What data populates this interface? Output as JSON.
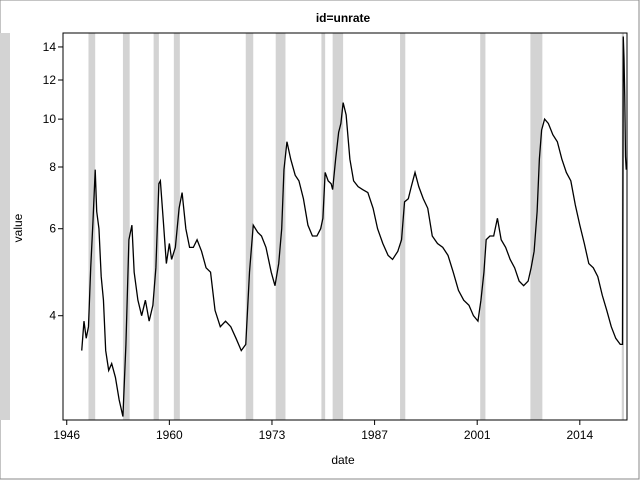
{
  "chart_data": {
    "type": "line",
    "title": "id=unrate",
    "x_label": "date",
    "y_label": "value",
    "ylog": true,
    "xlim": [
      1945.5,
      2020.8
    ],
    "ylim": [
      2.46,
      14.94
    ],
    "xticks": [
      {
        "value": 1946.0,
        "label": "1946"
      },
      {
        "value": 1959.7,
        "label": "1960"
      },
      {
        "value": 1973.4,
        "label": "1973"
      },
      {
        "value": 1987.1,
        "label": "1987"
      },
      {
        "value": 2000.8,
        "label": "2001"
      },
      {
        "value": 2014.5,
        "label": "2014"
      }
    ],
    "yticks": [
      4,
      6,
      8,
      10,
      12,
      14
    ],
    "shade_color": "#d3d3d3",
    "shaded_periods": [
      [
        1948.9,
        1949.8
      ],
      [
        1953.5,
        1954.4
      ],
      [
        1957.6,
        1958.3
      ],
      [
        1960.3,
        1961.1
      ],
      [
        1969.9,
        1970.9
      ],
      [
        1973.9,
        1975.2
      ],
      [
        1980.0,
        1980.5
      ],
      [
        1981.5,
        1982.9
      ],
      [
        1990.5,
        1991.2
      ],
      [
        2001.2,
        2001.9
      ],
      [
        2007.9,
        2009.5
      ],
      [
        2020.1,
        2020.4
      ]
    ],
    "series": [
      {
        "name": "unrate",
        "color": "#000000",
        "x": [
          1948.0,
          1948.3,
          1948.6,
          1948.9,
          1949.2,
          1949.5,
          1949.8,
          1950.0,
          1950.3,
          1950.6,
          1950.9,
          1951.2,
          1951.6,
          1952.0,
          1952.5,
          1953.0,
          1953.5,
          1953.9,
          1954.3,
          1954.7,
          1955.0,
          1955.5,
          1956.0,
          1956.5,
          1957.0,
          1957.5,
          1957.9,
          1958.3,
          1958.5,
          1958.9,
          1959.3,
          1959.7,
          1960.0,
          1960.5,
          1961.0,
          1961.4,
          1961.9,
          1962.4,
          1962.9,
          1963.4,
          1964.0,
          1964.6,
          1965.2,
          1965.8,
          1966.5,
          1967.2,
          1967.9,
          1968.6,
          1969.3,
          1969.9,
          1970.4,
          1970.9,
          1971.5,
          1972.0,
          1972.6,
          1973.3,
          1973.8,
          1974.3,
          1974.7,
          1975.0,
          1975.4,
          1975.9,
          1976.5,
          1977.0,
          1977.6,
          1978.2,
          1978.8,
          1979.4,
          1979.9,
          1980.2,
          1980.5,
          1980.9,
          1981.3,
          1981.5,
          1981.9,
          1982.3,
          1982.6,
          1982.9,
          1983.3,
          1983.8,
          1984.3,
          1984.9,
          1985.5,
          1986.2,
          1986.9,
          1987.5,
          1988.2,
          1988.9,
          1989.5,
          1990.2,
          1990.7,
          1991.1,
          1991.6,
          1992.0,
          1992.5,
          1993.0,
          1993.6,
          1994.2,
          1994.8,
          1995.5,
          1996.2,
          1996.9,
          1997.6,
          1998.3,
          1999.0,
          1999.7,
          2000.3,
          2000.9,
          2001.3,
          2001.7,
          2002.0,
          2002.5,
          2003.0,
          2003.5,
          2004.0,
          2004.6,
          2005.2,
          2005.8,
          2006.4,
          2007.0,
          2007.6,
          2008.0,
          2008.4,
          2008.8,
          2009.1,
          2009.4,
          2009.8,
          2010.3,
          2010.9,
          2011.5,
          2012.1,
          2012.7,
          2013.3,
          2013.9,
          2014.5,
          2015.1,
          2015.7,
          2016.3,
          2016.9,
          2017.5,
          2018.1,
          2018.7,
          2019.3,
          2019.9,
          2020.2,
          2020.3,
          2020.4,
          2020.5,
          2020.6,
          2020.7
        ],
        "values": [
          3.4,
          3.9,
          3.6,
          3.8,
          5.0,
          6.2,
          7.9,
          6.5,
          6.0,
          4.8,
          4.3,
          3.4,
          3.1,
          3.2,
          3.0,
          2.7,
          2.5,
          3.5,
          5.7,
          6.1,
          4.9,
          4.3,
          4.0,
          4.3,
          3.9,
          4.2,
          5.0,
          7.4,
          7.5,
          6.2,
          5.1,
          5.6,
          5.2,
          5.5,
          6.6,
          7.1,
          6.0,
          5.5,
          5.5,
          5.7,
          5.4,
          5.0,
          4.9,
          4.1,
          3.8,
          3.9,
          3.8,
          3.6,
          3.4,
          3.5,
          4.9,
          6.1,
          5.9,
          5.8,
          5.5,
          4.9,
          4.6,
          5.1,
          6.0,
          7.9,
          9.0,
          8.3,
          7.7,
          7.5,
          6.9,
          6.1,
          5.8,
          5.8,
          6.0,
          6.3,
          7.8,
          7.5,
          7.4,
          7.2,
          8.3,
          9.4,
          9.8,
          10.8,
          10.2,
          8.3,
          7.5,
          7.3,
          7.2,
          7.1,
          6.6,
          6.0,
          5.6,
          5.3,
          5.2,
          5.4,
          5.7,
          6.8,
          6.9,
          7.3,
          7.8,
          7.3,
          6.9,
          6.6,
          5.8,
          5.6,
          5.5,
          5.3,
          4.9,
          4.5,
          4.3,
          4.2,
          4.0,
          3.9,
          4.3,
          4.9,
          5.7,
          5.8,
          5.8,
          6.3,
          5.7,
          5.5,
          5.2,
          5.0,
          4.7,
          4.6,
          4.7,
          5.0,
          5.4,
          6.5,
          8.3,
          9.5,
          10.0,
          9.8,
          9.3,
          9.0,
          8.3,
          7.8,
          7.5,
          6.7,
          6.1,
          5.6,
          5.1,
          5.0,
          4.8,
          4.4,
          4.1,
          3.8,
          3.6,
          3.5,
          3.5,
          14.7,
          13.3,
          11.1,
          8.4,
          7.9
        ]
      }
    ]
  }
}
